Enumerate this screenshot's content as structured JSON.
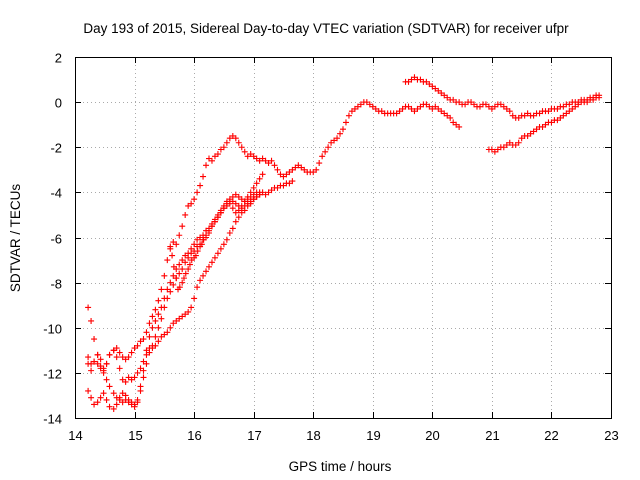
{
  "chart_data": {
    "type": "scatter",
    "title": "Day 193 of 2015, Sidereal Day-to-day VTEC variation (SDTVAR) for receiver ufpr",
    "xlabel": "GPS time / hours",
    "ylabel": "SDTVAR / TECUs",
    "xlim": [
      14,
      23
    ],
    "ylim": [
      -14,
      2
    ],
    "xticks": [
      "14",
      "15",
      "16",
      "17",
      "18",
      "19",
      "20",
      "21",
      "22",
      "23"
    ],
    "yticks": [
      "2",
      "0",
      "-2",
      "-4",
      "-6",
      "-8",
      "-10",
      "-12",
      "-14"
    ],
    "marker": "+",
    "color": "#ff0000",
    "grid": true,
    "legend": "none",
    "series": [
      {
        "x": [
          14.22,
          14.27,
          14.32,
          14.38,
          14.43,
          14.48,
          14.53,
          14.58,
          14.65,
          14.7,
          14.75,
          14.8,
          14.85,
          14.9,
          14.95,
          15.0,
          15.05,
          15.1,
          15.15,
          15.2,
          15.25,
          15.3,
          15.35,
          15.4,
          15.45,
          15.5,
          15.55,
          15.6,
          15.65,
          15.7,
          15.75,
          15.8,
          15.85,
          15.9,
          15.95,
          16.0,
          16.05,
          16.1,
          16.15,
          16.2,
          16.25,
          16.3,
          16.35,
          16.4,
          16.45,
          16.5,
          16.55,
          16.6,
          16.65,
          16.7,
          16.75,
          16.8,
          16.85,
          16.9,
          16.95,
          17.0,
          17.05,
          17.1,
          17.15,
          17.2,
          17.25,
          17.3,
          17.35,
          17.4,
          17.45,
          17.5,
          17.55,
          17.6,
          17.65,
          17.7,
          17.75,
          17.8,
          17.85,
          17.9,
          17.95,
          18.0,
          18.05,
          18.1,
          18.15,
          18.2,
          18.25,
          18.3,
          18.35,
          18.4,
          18.45,
          18.5,
          18.55,
          18.6,
          18.65,
          18.7,
          18.75,
          18.8,
          18.85,
          18.9,
          18.95,
          19.0,
          19.05,
          19.1,
          19.15,
          19.2,
          19.25,
          19.3,
          19.35,
          19.4,
          19.45,
          19.5,
          19.55,
          19.6,
          19.65,
          19.7,
          19.75,
          19.8,
          19.85,
          19.9,
          19.95,
          20.0,
          20.05,
          20.1,
          20.15,
          20.2,
          20.25,
          20.3,
          20.35,
          20.4,
          20.45
        ],
        "y": [
          -9.1,
          -9.7,
          -10.5,
          -11.2,
          -11.7,
          -11.9,
          -11.6,
          -11.2,
          -11.0,
          -10.9,
          -11.1,
          -11.3,
          -11.4,
          -11.3,
          -11.1,
          -10.9,
          -10.8,
          -10.6,
          -10.5,
          -10.2,
          -9.8,
          -9.5,
          -9.2,
          -8.8,
          -8.3,
          -7.7,
          -7.0,
          -6.5,
          -6.2,
          -6.3,
          -5.9,
          -5.5,
          -5.0,
          -4.6,
          -4.5,
          -4.3,
          -4.0,
          -3.7,
          -3.3,
          -2.8,
          -2.5,
          -2.6,
          -2.4,
          -2.3,
          -2.1,
          -2.0,
          -1.8,
          -1.6,
          -1.5,
          -1.6,
          -1.8,
          -2.0,
          -2.2,
          -2.4,
          -2.3,
          -2.4,
          -2.5,
          -2.6,
          -2.5,
          -2.6,
          -2.7,
          -2.6,
          -2.8,
          -3.0,
          -3.2,
          -3.3,
          -3.2,
          -3.1,
          -3.0,
          -2.9,
          -2.8,
          -2.9,
          -3.0,
          -3.1,
          -3.1,
          -3.1,
          -3.0,
          -2.7,
          -2.4,
          -2.2,
          -2.0,
          -1.8,
          -1.7,
          -1.6,
          -1.4,
          -1.2,
          -0.9,
          -0.6,
          -0.4,
          -0.3,
          -0.2,
          -0.1,
          0.0,
          0.0,
          -0.1,
          -0.2,
          -0.3,
          -0.4,
          -0.4,
          -0.5,
          -0.5,
          -0.5,
          -0.5,
          -0.5,
          -0.4,
          -0.3,
          -0.2,
          -0.2,
          -0.3,
          -0.4,
          -0.3,
          -0.2,
          -0.1,
          -0.1,
          -0.2,
          -0.3,
          -0.2,
          -0.3,
          -0.4,
          -0.5,
          -0.6,
          -0.7,
          -0.9,
          -1.0,
          -1.1
        ]
      },
      {
        "x": [
          14.22,
          14.27,
          14.32,
          14.38,
          14.43,
          14.48,
          14.53,
          14.58,
          14.65,
          14.7,
          14.75,
          14.8,
          14.85,
          14.9,
          14.95,
          15.0,
          15.05,
          15.1,
          15.15,
          15.2,
          15.25,
          15.3,
          15.35,
          15.4,
          15.45,
          15.5,
          15.55,
          15.6,
          15.65,
          15.7,
          15.75,
          15.8,
          15.85,
          15.9,
          15.95,
          16.0,
          16.05,
          16.1,
          16.15,
          16.2,
          16.25,
          16.3,
          16.35,
          16.4,
          16.45,
          16.5,
          16.55,
          16.6,
          16.65,
          16.7,
          16.75,
          16.8,
          16.85,
          16.9,
          16.95,
          17.0,
          17.05,
          17.1
        ],
        "y": [
          -11.6,
          -11.9,
          -11.5,
          -11.2,
          -11.4,
          -11.8,
          -11.6,
          -11.2,
          -11.0,
          -11.3,
          -11.8,
          -12.3,
          -12.4,
          -12.2,
          -12.3,
          -12.2,
          -12.0,
          -11.8,
          -11.5,
          -11.0,
          -10.4,
          -10.0,
          -9.7,
          -9.4,
          -9.1,
          -8.7,
          -8.3,
          -8.0,
          -7.7,
          -7.4,
          -7.2,
          -7.0,
          -6.8,
          -6.7,
          -6.5,
          -6.3,
          -6.1,
          -6.0,
          -5.9,
          -5.7,
          -5.6,
          -5.4,
          -5.2,
          -5.0,
          -4.8,
          -4.6,
          -4.4,
          -4.3,
          -4.2,
          -4.1,
          -4.2,
          -4.3,
          -4.4,
          -4.3,
          -4.2,
          -4.1,
          -4.0,
          -4.0
        ]
      },
      {
        "x": [
          14.22,
          14.27,
          14.32,
          14.38,
          14.43,
          14.48,
          14.53,
          14.58,
          14.65,
          14.7,
          14.75,
          14.8,
          14.85,
          14.9,
          14.95,
          15.0,
          15.05,
          15.1,
          15.15,
          15.2,
          15.25,
          15.3,
          15.35,
          15.4,
          15.45,
          15.5,
          15.55,
          15.6,
          15.65,
          15.7,
          15.75,
          15.8,
          15.85,
          15.9,
          15.95,
          16.0,
          16.05,
          16.1,
          16.15,
          16.2,
          16.25,
          16.3,
          16.35,
          16.4,
          16.45,
          16.5,
          16.55,
          16.6,
          16.65,
          16.7,
          16.75,
          16.8,
          16.85,
          16.9,
          16.95,
          17.0,
          17.05,
          17.1,
          17.15,
          17.2,
          17.25,
          17.3,
          17.35,
          17.4,
          17.45,
          17.5,
          17.55,
          17.6,
          17.65
        ],
        "y": [
          -11.3,
          -11.6,
          -11.5,
          -11.6,
          -11.8,
          -12.0,
          -12.3,
          -12.6,
          -12.9,
          -13.1,
          -13.2,
          -13.3,
          -13.2,
          -13.3,
          -13.4,
          -13.5,
          -13.3,
          -12.8,
          -12.2,
          -11.6,
          -11.1,
          -10.8,
          -10.4,
          -10.0,
          -9.6,
          -9.1,
          -8.7,
          -8.4,
          -8.1,
          -7.8,
          -7.6,
          -7.4,
          -7.1,
          -6.9,
          -6.7,
          -6.6,
          -6.4,
          -6.3,
          -6.1,
          -5.9,
          -5.7,
          -5.5,
          -5.3,
          -5.1,
          -4.9,
          -4.7,
          -4.5,
          -4.4,
          -4.4,
          -4.5,
          -4.6,
          -4.7,
          -4.6,
          -4.5,
          -4.4,
          -4.3,
          -4.2,
          -4.1,
          -4.0,
          -4.1,
          -4.0,
          -3.9,
          -3.8,
          -3.8,
          -3.7,
          -3.7,
          -3.6,
          -3.6,
          -3.5
        ]
      },
      {
        "x": [
          14.22,
          14.27,
          14.32,
          14.38,
          14.43,
          14.48,
          14.53,
          14.58,
          14.65,
          14.7,
          14.75,
          14.8,
          14.85,
          14.9,
          14.95,
          15.0,
          15.05,
          15.1,
          15.15,
          15.2,
          15.25,
          15.3,
          15.35,
          15.4,
          15.45,
          15.5,
          15.55,
          15.6,
          15.65,
          15.7,
          15.75,
          15.8,
          15.85,
          15.9,
          15.95,
          16.0,
          16.05,
          16.1,
          16.15,
          16.2,
          16.25,
          16.3,
          16.35,
          16.4,
          16.45,
          16.5,
          16.55,
          16.6,
          16.65,
          16.7,
          16.75,
          16.8,
          16.85,
          16.9,
          16.95,
          17.0,
          17.05,
          17.1
        ],
        "y": [
          -12.8,
          -13.1,
          -13.4,
          -13.3,
          -13.1,
          -12.9,
          -13.2,
          -13.5,
          -13.6,
          -13.4,
          -13.1,
          -12.9,
          -13.0,
          -13.2,
          -13.3,
          -13.4,
          -13.2,
          -12.6,
          -11.9,
          -11.2,
          -10.9,
          -10.9,
          -10.8,
          -10.6,
          -10.4,
          -10.3,
          -10.2,
          -10.0,
          -9.8,
          -9.7,
          -9.6,
          -9.5,
          -9.4,
          -9.3,
          -9.1,
          -8.7,
          -8.2,
          -7.9,
          -7.7,
          -7.5,
          -7.3,
          -7.1,
          -6.9,
          -6.7,
          -6.5,
          -6.3,
          -6.1,
          -5.8,
          -5.6,
          -5.3,
          -5.1,
          -4.9,
          -4.8,
          -4.6,
          -4.5,
          -4.3,
          -4.2,
          -4.1
        ]
      },
      {
        "x": [
          15.6,
          15.63,
          15.66,
          15.7,
          15.73,
          15.76,
          15.8,
          15.83,
          15.86,
          15.9,
          15.93,
          15.96,
          16.0,
          16.03,
          16.06,
          16.1,
          16.13,
          16.16,
          16.2,
          16.25,
          16.3,
          16.35,
          16.4,
          16.45,
          16.5,
          16.55,
          16.6,
          16.65,
          16.7,
          16.75,
          16.8,
          16.85,
          16.9,
          16.95,
          17.0,
          17.05,
          17.1,
          17.15
        ],
        "y": [
          -6.4,
          -6.8,
          -7.3,
          -7.8,
          -8.3,
          -8.2,
          -8.0,
          -7.8,
          -7.6,
          -7.4,
          -7.2,
          -7.0,
          -6.9,
          -6.8,
          -6.6,
          -6.4,
          -6.3,
          -6.1,
          -6.0,
          -5.8,
          -5.5,
          -5.3,
          -5.1,
          -4.9,
          -4.7,
          -4.6,
          -4.5,
          -4.7,
          -4.9,
          -4.8,
          -4.6,
          -4.4,
          -4.2,
          -4.0,
          -3.8,
          -3.6,
          -3.4,
          -3.2
        ]
      },
      {
        "x": [
          19.55,
          19.6,
          19.65,
          19.7,
          19.75,
          19.8,
          19.85,
          19.9,
          19.95,
          20.0,
          20.05,
          20.1,
          20.15,
          20.2,
          20.25,
          20.3,
          20.35,
          20.4,
          20.45,
          20.5,
          20.55,
          20.6,
          20.65,
          20.7,
          20.75,
          20.8,
          20.85,
          20.9,
          20.95,
          21.0,
          21.05,
          21.1,
          21.15,
          21.2,
          21.25,
          21.3,
          21.35,
          21.4,
          21.45,
          21.5,
          21.55,
          21.6,
          21.65,
          21.7,
          21.75,
          21.8,
          21.85,
          21.9,
          21.95,
          22.0,
          22.05,
          22.1,
          22.15,
          22.2,
          22.25,
          22.3,
          22.35,
          22.4,
          22.45,
          22.5,
          22.55,
          22.6,
          22.65,
          22.7,
          22.75,
          22.8
        ],
        "y": [
          0.9,
          0.9,
          1.0,
          1.1,
          1.0,
          1.0,
          0.9,
          0.9,
          0.8,
          0.7,
          0.6,
          0.5,
          0.4,
          0.3,
          0.2,
          0.1,
          0.1,
          0.0,
          0.0,
          -0.1,
          -0.1,
          0.0,
          0.0,
          -0.1,
          -0.2,
          -0.2,
          -0.1,
          -0.1,
          -0.2,
          -0.3,
          -0.2,
          -0.1,
          -0.1,
          -0.2,
          -0.3,
          -0.4,
          -0.6,
          -0.7,
          -0.7,
          -0.6,
          -0.6,
          -0.5,
          -0.6,
          -0.6,
          -0.5,
          -0.5,
          -0.4,
          -0.4,
          -0.4,
          -0.3,
          -0.3,
          -0.3,
          -0.2,
          -0.2,
          -0.1,
          -0.1,
          0.0,
          0.0,
          0.0,
          0.1,
          0.1,
          0.1,
          0.2,
          0.2,
          0.3,
          0.3
        ]
      },
      {
        "x": [
          20.95,
          21.0,
          21.05,
          21.1,
          21.15,
          21.2,
          21.25,
          21.3,
          21.35,
          21.4,
          21.45,
          21.5,
          21.55,
          21.6,
          21.65,
          21.7,
          21.75,
          21.8,
          21.85,
          21.9,
          21.95,
          22.0,
          22.05,
          22.1,
          22.15,
          22.2,
          22.25,
          22.3,
          22.35,
          22.4,
          22.45,
          22.5,
          22.55,
          22.6,
          22.65,
          22.7,
          22.75,
          22.8
        ],
        "y": [
          -2.1,
          -2.1,
          -2.2,
          -2.1,
          -2.0,
          -2.0,
          -1.9,
          -1.8,
          -1.9,
          -1.9,
          -1.8,
          -1.6,
          -1.5,
          -1.5,
          -1.4,
          -1.3,
          -1.2,
          -1.1,
          -1.1,
          -1.0,
          -0.9,
          -0.9,
          -0.8,
          -0.8,
          -0.7,
          -0.6,
          -0.5,
          -0.4,
          -0.3,
          -0.2,
          -0.1,
          0.0,
          0.0,
          0.0,
          0.1,
          0.1,
          0.2,
          0.2
        ]
      }
    ]
  }
}
